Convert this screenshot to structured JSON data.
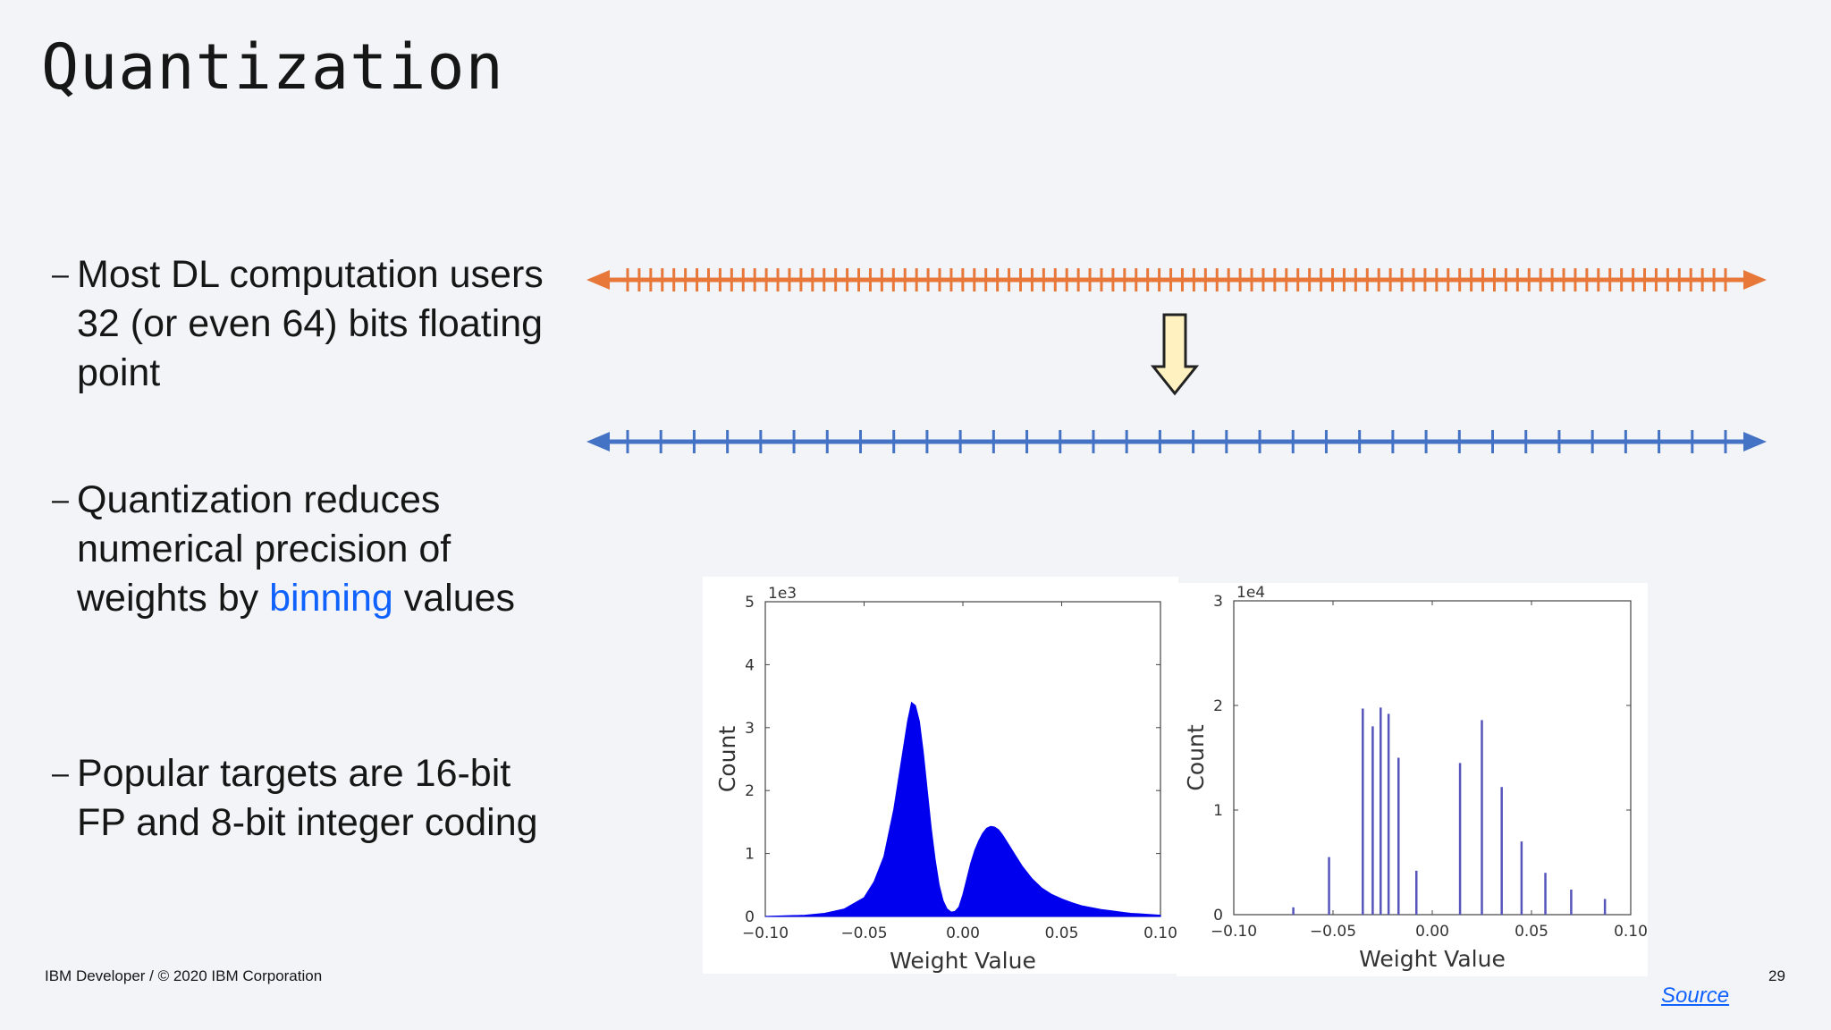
{
  "slide": {
    "title": "Quantization",
    "bullets": [
      {
        "text": "Most DL computation users 32 (or even 64) bits floating point"
      },
      {
        "text_before": "Quantization reduces numerical precision of weights by ",
        "highlight": "binning",
        "text_after": " values"
      },
      {
        "text": "Popular targets are 16-bit FP and 8-bit integer coding"
      }
    ],
    "footer": "IBM Developer / © 2020 IBM Corporation",
    "page_number": "29",
    "source_link": "Source",
    "dash": "–"
  },
  "diagram": {
    "top_line_color": "#e8783a",
    "bottom_line_color": "#4472c4",
    "arrow_fill": "#fff2c0",
    "top_tick_count": 96,
    "bottom_tick_count": 34
  },
  "chart_data": [
    {
      "type": "area",
      "title": "",
      "xlabel": "Weight Value",
      "ylabel": "Count",
      "y_multiplier_label": "1e3",
      "xlim": [
        -0.1,
        0.1
      ],
      "ylim": [
        0,
        5
      ],
      "xticks": [
        "−0.10",
        "−0.05",
        "0.00",
        "0.05",
        "0.10"
      ],
      "yticks": [
        "0",
        "1",
        "2",
        "3",
        "4",
        "5"
      ],
      "color": "#0000ee",
      "series": [
        {
          "x": [
            -0.1,
            -0.09,
            -0.08,
            -0.07,
            -0.06,
            -0.05,
            -0.045,
            -0.04,
            -0.035,
            -0.03,
            -0.028,
            -0.026,
            -0.024,
            -0.022,
            -0.02,
            -0.018,
            -0.016,
            -0.014,
            -0.012,
            -0.01,
            -0.008,
            -0.006,
            -0.004,
            -0.002,
            0.0,
            0.002,
            0.004,
            0.006,
            0.008,
            0.01,
            0.012,
            0.014,
            0.016,
            0.018,
            0.02,
            0.022,
            0.024,
            0.026,
            0.028,
            0.03,
            0.032,
            0.035,
            0.04,
            0.045,
            0.05,
            0.055,
            0.06,
            0.065,
            0.07,
            0.075,
            0.08,
            0.085,
            0.09,
            0.095,
            0.1
          ],
          "y": [
            0.0,
            0.01,
            0.02,
            0.05,
            0.12,
            0.3,
            0.55,
            0.95,
            1.7,
            2.7,
            3.1,
            3.4,
            3.35,
            3.1,
            2.6,
            2.0,
            1.4,
            0.9,
            0.5,
            0.25,
            0.12,
            0.07,
            0.08,
            0.15,
            0.35,
            0.6,
            0.85,
            1.05,
            1.2,
            1.32,
            1.4,
            1.43,
            1.42,
            1.38,
            1.3,
            1.2,
            1.1,
            1.0,
            0.9,
            0.8,
            0.72,
            0.6,
            0.45,
            0.35,
            0.28,
            0.22,
            0.17,
            0.14,
            0.11,
            0.09,
            0.07,
            0.05,
            0.04,
            0.03,
            0.02
          ]
        }
      ]
    },
    {
      "type": "bar",
      "title": "",
      "xlabel": "Weight Value",
      "ylabel": "Count",
      "y_multiplier_label": "1e4",
      "xlim": [
        -0.1,
        0.1
      ],
      "ylim": [
        0,
        3
      ],
      "xticks": [
        "−0.10",
        "−0.05",
        "0.00",
        "0.05",
        "0.10"
      ],
      "yticks": [
        "0",
        "1",
        "2",
        "3"
      ],
      "color": "#5555bb",
      "series": [
        {
          "x": [
            -0.07,
            -0.052,
            -0.035,
            -0.03,
            -0.026,
            -0.022,
            -0.017,
            -0.008,
            0.014,
            0.025,
            0.035,
            0.045,
            0.057,
            0.07,
            0.087
          ],
          "y": [
            0.07,
            0.55,
            1.97,
            1.8,
            1.98,
            1.92,
            1.5,
            0.42,
            1.45,
            1.86,
            1.22,
            0.7,
            0.4,
            0.24,
            0.15
          ]
        }
      ]
    }
  ]
}
